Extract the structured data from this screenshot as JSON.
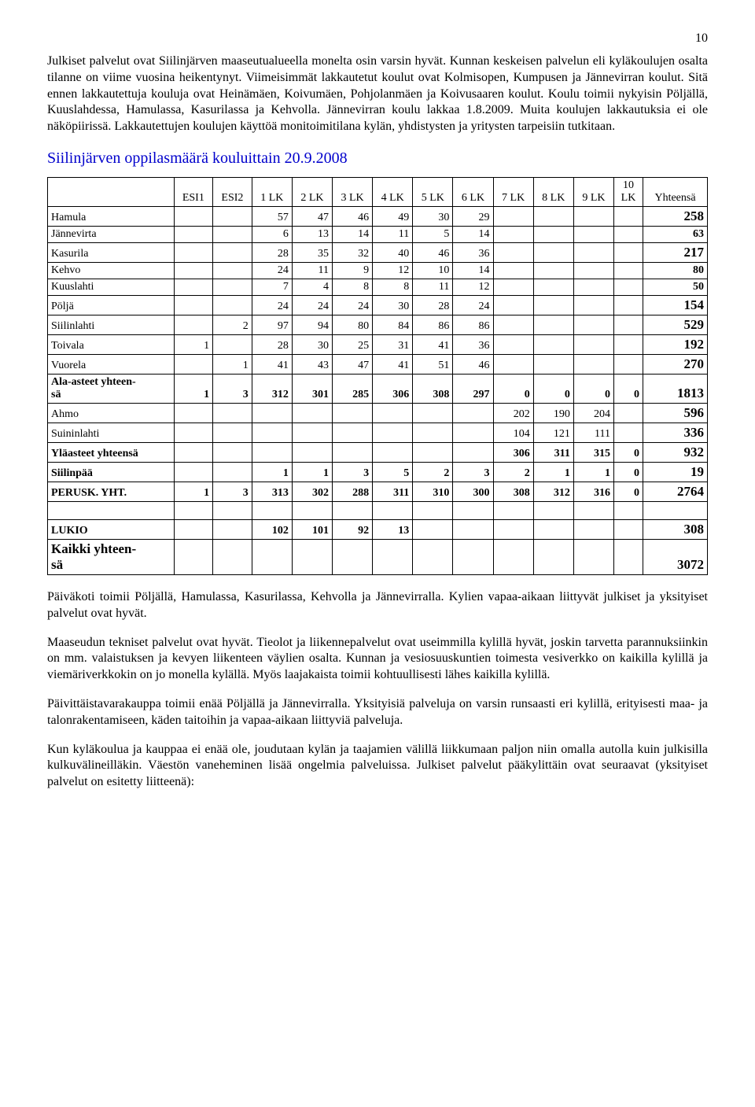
{
  "page_number": "10",
  "intro_paragraphs": [
    "Julkiset palvelut ovat Siilinjärven maaseutualueella monelta osin varsin hyvät. Kunnan keskeisen palvelun eli kyläkoulujen osalta tilanne on viime vuosina heikentynyt. Viimeisimmät lakkautetut koulut ovat Kolmisopen, Kumpusen ja Jännevirran koulut. Sitä ennen lakkautettuja kouluja ovat Heinämäen, Koivumäen, Pohjolanmäen ja Koivusaaren koulut. Koulu toimii nykyisin Pöljällä, Kuuslahdessa, Hamulassa, Kasurilassa ja Kehvolla. Jännevirran koulu lakkaa 1.8.2009. Muita koulujen lakkautuksia ei ole näköpiirissä. Lakkautettujen koulujen käyttöä monitoimitilana kylän, yhdistysten ja yritysten tarpeisiin tutkitaan."
  ],
  "section_title": "Siilinjärven oppilasmäärä kouluittain 20.9.2008",
  "table": {
    "columns": [
      "",
      "ESI1",
      "ESI2",
      "1 LK",
      "2 LK",
      "3 LK",
      "4 LK",
      "5 LK",
      "6 LK",
      "7 LK",
      "8 LK",
      "9 LK",
      "10 LK",
      "Yhteensä"
    ],
    "rows": [
      {
        "label": "Hamula",
        "cells": [
          "",
          "",
          "57",
          "47",
          "46",
          "49",
          "30",
          "29",
          "",
          "",
          "",
          ""
        ],
        "total": "258",
        "bold": false
      },
      {
        "label": "Jännevirta",
        "cells": [
          "",
          "",
          "6",
          "13",
          "14",
          "11",
          "5",
          "14",
          "",
          "",
          "",
          ""
        ],
        "total": "63",
        "bold": false
      },
      {
        "label": "Kasurila",
        "cells": [
          "",
          "",
          "28",
          "35",
          "32",
          "40",
          "46",
          "36",
          "",
          "",
          "",
          ""
        ],
        "total": "217",
        "bold": false
      },
      {
        "label": "Kehvo",
        "cells": [
          "",
          "",
          "24",
          "11",
          "9",
          "12",
          "10",
          "14",
          "",
          "",
          "",
          ""
        ],
        "total": "80",
        "bold": false
      },
      {
        "label": "Kuuslahti",
        "cells": [
          "",
          "",
          "7",
          "4",
          "8",
          "8",
          "11",
          "12",
          "",
          "",
          "",
          ""
        ],
        "total": "50",
        "bold": false
      },
      {
        "label": "Pöljä",
        "cells": [
          "",
          "",
          "24",
          "24",
          "24",
          "30",
          "28",
          "24",
          "",
          "",
          "",
          ""
        ],
        "total": "154",
        "bold": false
      },
      {
        "label": "Siilinlahti",
        "cells": [
          "",
          "2",
          "97",
          "94",
          "80",
          "84",
          "86",
          "86",
          "",
          "",
          "",
          ""
        ],
        "total": "529",
        "bold": false
      },
      {
        "label": "Toivala",
        "cells": [
          "1",
          "",
          "28",
          "30",
          "25",
          "31",
          "41",
          "36",
          "",
          "",
          "",
          ""
        ],
        "total": "192",
        "bold": false
      },
      {
        "label": "Vuorela",
        "cells": [
          "",
          "1",
          "41",
          "43",
          "47",
          "41",
          "51",
          "46",
          "",
          "",
          "",
          ""
        ],
        "total": "270",
        "bold": false
      },
      {
        "label": "Ala-asteet yhteensä",
        "cells": [
          "1",
          "3",
          "312",
          "301",
          "285",
          "306",
          "308",
          "297",
          "0",
          "0",
          "0",
          "0"
        ],
        "total": "1813",
        "bold": true
      },
      {
        "label": "Ahmo",
        "cells": [
          "",
          "",
          "",
          "",
          "",
          "",
          "",
          "",
          "202",
          "190",
          "204",
          ""
        ],
        "total": "596",
        "bold": false
      },
      {
        "label": "Suininlahti",
        "cells": [
          "",
          "",
          "",
          "",
          "",
          "",
          "",
          "",
          "104",
          "121",
          "111",
          ""
        ],
        "total": "336",
        "bold": false
      },
      {
        "label": "Yläasteet yhteensä",
        "cells": [
          "",
          "",
          "",
          "",
          "",
          "",
          "",
          "",
          "306",
          "311",
          "315",
          "0"
        ],
        "total": "932",
        "bold": true
      },
      {
        "label": "Siilinpää",
        "cells": [
          "",
          "",
          "1",
          "1",
          "3",
          "5",
          "2",
          "3",
          "2",
          "1",
          "1",
          "0"
        ],
        "total": "19",
        "bold": true
      },
      {
        "label": "PERUSK. YHT.",
        "cells": [
          "1",
          "3",
          "313",
          "302",
          "288",
          "311",
          "310",
          "300",
          "308",
          "312",
          "316",
          "0"
        ],
        "total": "2764",
        "bold": true
      },
      {
        "label": "",
        "cells": [
          "",
          "",
          "",
          "",
          "",
          "",
          "",
          "",
          "",
          "",
          "",
          ""
        ],
        "total": "",
        "bold": false,
        "empty": true
      },
      {
        "label": "LUKIO",
        "cells": [
          "",
          "",
          "102",
          "101",
          "92",
          "13",
          "",
          "",
          "",
          "",
          "",
          ""
        ],
        "total": "308",
        "bold": true
      },
      {
        "label": "Kaikki yhteensä",
        "cells": [
          "",
          "",
          "",
          "",
          "",
          "",
          "",
          "",
          "",
          "",
          "",
          ""
        ],
        "total": "3072",
        "bold": true
      }
    ]
  },
  "footer_paragraphs": [
    "Päiväkoti toimii Pöljällä, Hamulassa, Kasurilassa, Kehvolla ja Jännevirralla. Kylien vapaa-aikaan liittyvät julkiset ja yksityiset palvelut ovat hyvät.",
    "Maaseudun tekniset palvelut ovat hyvät. Tieolot ja liikennepalvelut ovat useimmilla kylillä hyvät, joskin tarvetta parannuksiinkin on mm. valaistuksen ja kevyen liikenteen väylien osalta. Kunnan ja vesiosuuskuntien toimesta vesiverkko on kaikilla kylillä ja viemäriverkkokin on jo monella kylällä. Myös laajakaista toimii kohtuullisesti lähes kaikilla kylillä.",
    "Päivittäistavarakauppa toimii enää Pöljällä ja Jännevirralla. Yksityisiä palveluja on varsin runsaasti eri kylillä, erityisesti maa- ja talonrakentamiseen, käden taitoihin ja vapaa-aikaan liittyviä palveluja.",
    "Kun kyläkoulua ja kauppaa ei enää ole, joudutaan kylän ja taajamien välillä liikkumaan paljon niin omalla autolla kuin julkisilla kulkuvälineilläkin. Väestön vaneheminen lisää ongelmia palveluissa. Julkiset palvelut pääkylittäin ovat seuraavat (yksityiset palvelut on esitetty liitteenä):"
  ]
}
